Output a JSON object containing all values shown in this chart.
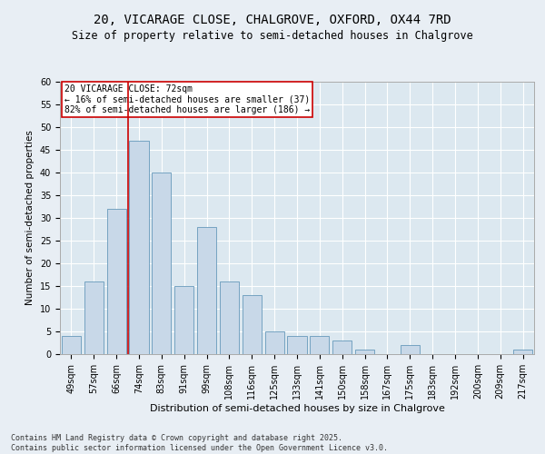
{
  "title1": "20, VICARAGE CLOSE, CHALGROVE, OXFORD, OX44 7RD",
  "title2": "Size of property relative to semi-detached houses in Chalgrove",
  "xlabel": "Distribution of semi-detached houses by size in Chalgrove",
  "ylabel": "Number of semi-detached properties",
  "categories": [
    "49sqm",
    "57sqm",
    "66sqm",
    "74sqm",
    "83sqm",
    "91sqm",
    "99sqm",
    "108sqm",
    "116sqm",
    "125sqm",
    "133sqm",
    "141sqm",
    "150sqm",
    "158sqm",
    "167sqm",
    "175sqm",
    "183sqm",
    "192sqm",
    "200sqm",
    "209sqm",
    "217sqm"
  ],
  "values": [
    4,
    16,
    32,
    47,
    40,
    15,
    28,
    16,
    13,
    5,
    4,
    4,
    3,
    1,
    0,
    2,
    0,
    0,
    0,
    0,
    1
  ],
  "bar_color": "#c8d8e8",
  "bar_edge_color": "#6699bb",
  "annotation_text": "20 VICARAGE CLOSE: 72sqm\n← 16% of semi-detached houses are smaller (37)\n82% of semi-detached houses are larger (186) →",
  "annotation_box_color": "#ffffff",
  "annotation_box_edge_color": "#cc0000",
  "annotation_text_color": "#000000",
  "vline_color": "#cc0000",
  "vline_x": 2.5,
  "background_color": "#e8eef4",
  "plot_bg_color": "#dce8f0",
  "grid_color": "#ffffff",
  "ylim": [
    0,
    60
  ],
  "yticks": [
    0,
    5,
    10,
    15,
    20,
    25,
    30,
    35,
    40,
    45,
    50,
    55,
    60
  ],
  "footer1": "Contains HM Land Registry data © Crown copyright and database right 2025.",
  "footer2": "Contains public sector information licensed under the Open Government Licence v3.0.",
  "title1_fontsize": 10,
  "title2_fontsize": 8.5,
  "xlabel_fontsize": 8,
  "ylabel_fontsize": 7.5,
  "tick_fontsize": 7,
  "annotation_fontsize": 7,
  "footer_fontsize": 6
}
